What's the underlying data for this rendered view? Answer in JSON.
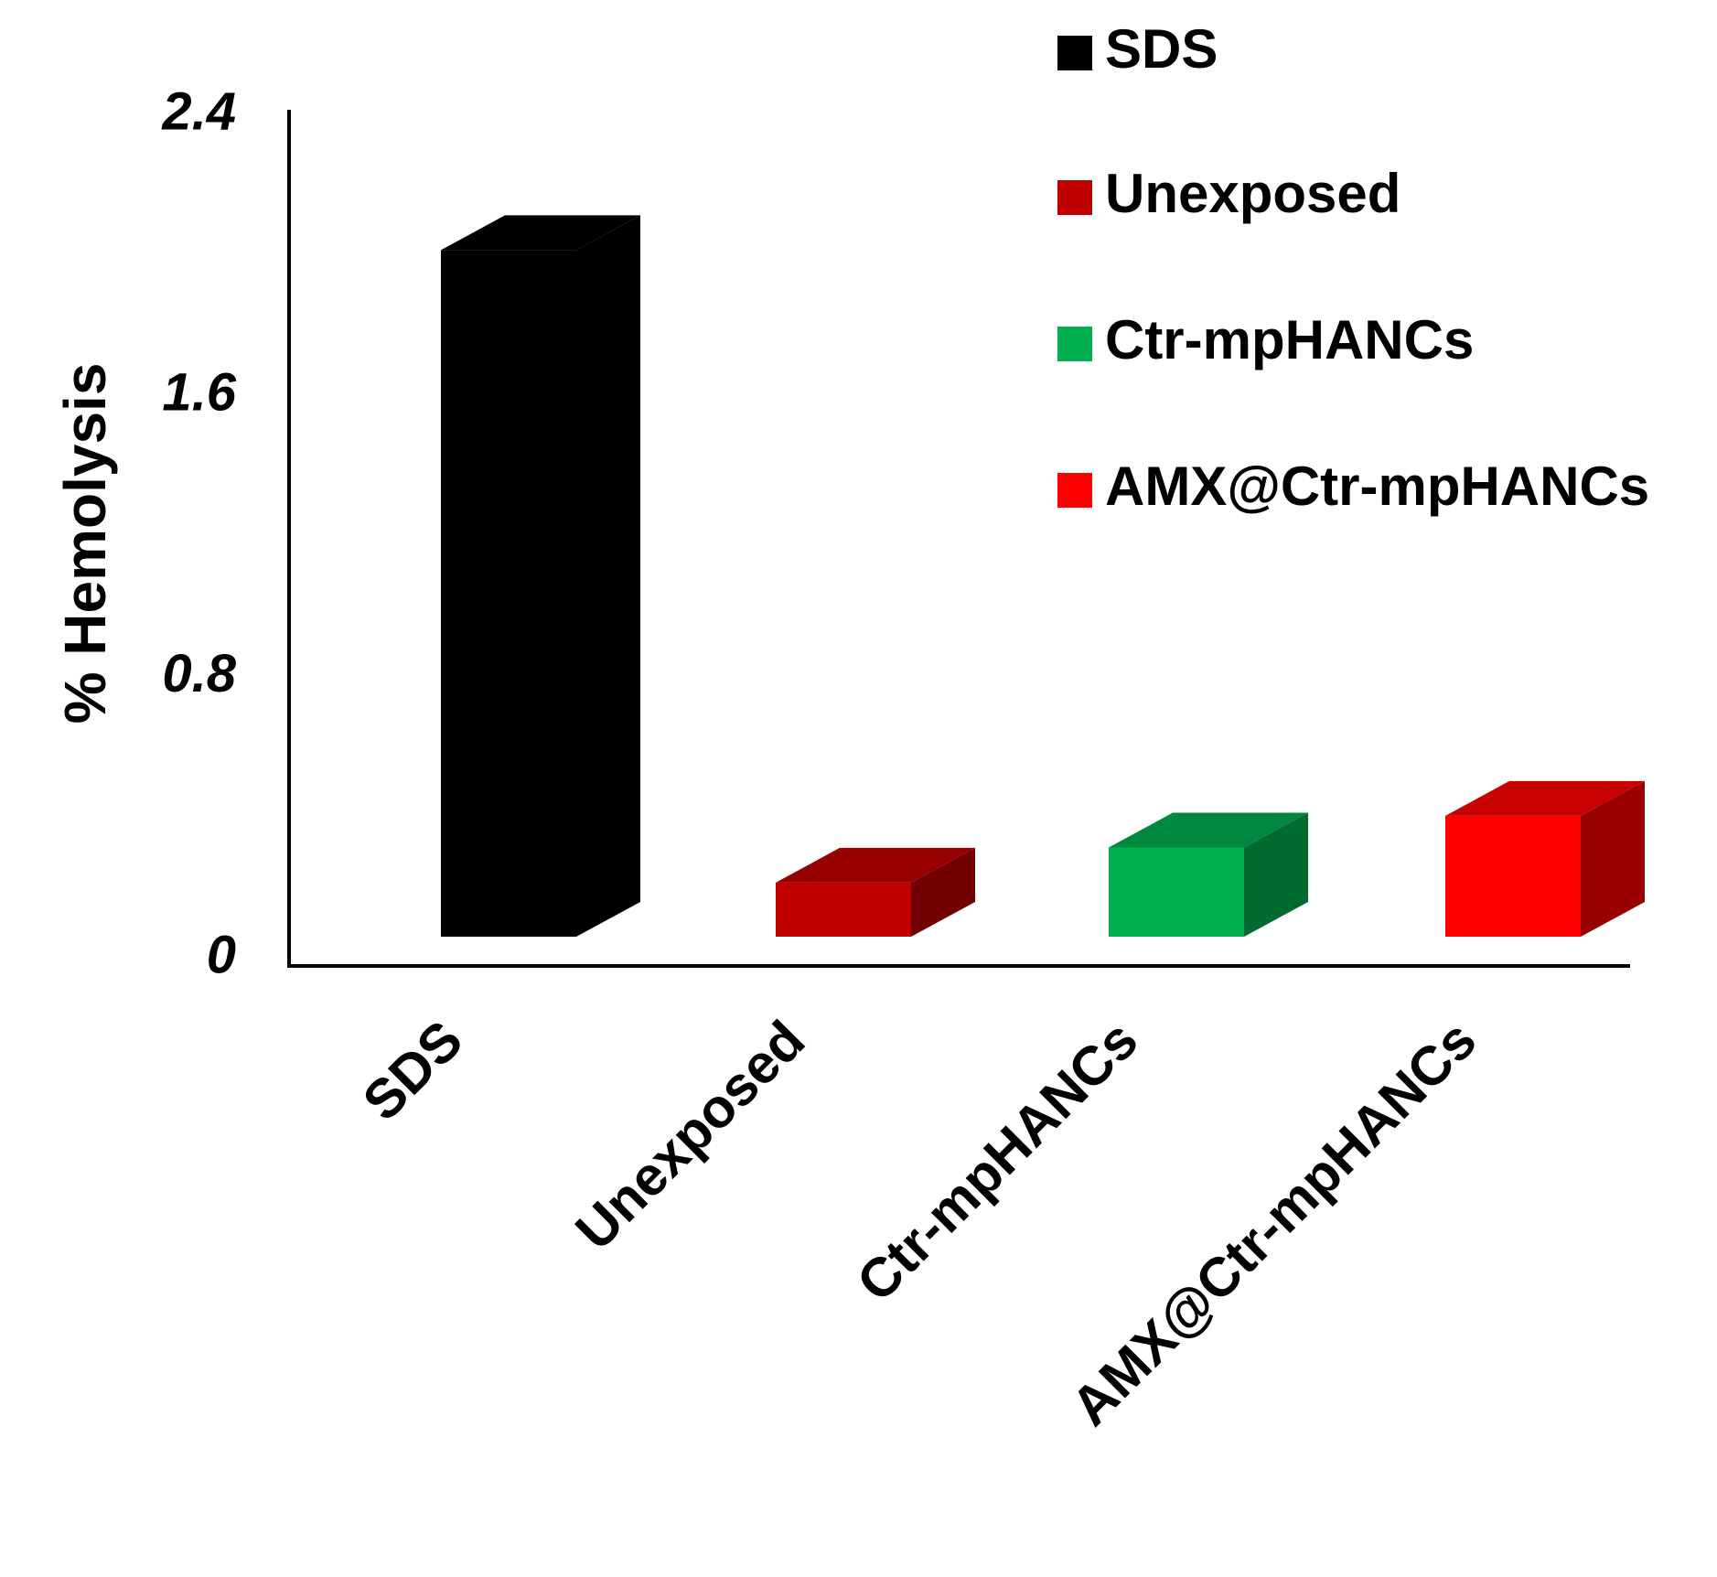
{
  "chart_data": {
    "type": "bar",
    "style": "3d",
    "title": "",
    "xlabel": "",
    "ylabel": "% Hemolysis",
    "ylim": [
      0,
      2.4
    ],
    "yticks": [
      {
        "value": 0,
        "label": "0"
      },
      {
        "value": 0.8,
        "label": "0.8"
      },
      {
        "value": 1.6,
        "label": "1.6"
      },
      {
        "value": 2.4,
        "label": "2.4"
      }
    ],
    "categories": [
      "SDS",
      "Unexposed",
      "Ctr-mpHANCs",
      "AMX@Ctr-mpHANCs"
    ],
    "values": [
      2.11,
      0.31,
      0.41,
      0.5
    ],
    "colors": [
      "#000000",
      "#c00000",
      "#00b050",
      "#ff0000"
    ],
    "grid": false,
    "legend": {
      "position": "top-right",
      "entries": [
        {
          "label": "SDS",
          "color": "#000000"
        },
        {
          "label": "Unexposed",
          "color": "#c00000"
        },
        {
          "label": "Ctr-mpHANCs",
          "color": "#00b050"
        },
        {
          "label": "AMX@Ctr-mpHANCs",
          "color": "#ff0000"
        }
      ]
    }
  }
}
